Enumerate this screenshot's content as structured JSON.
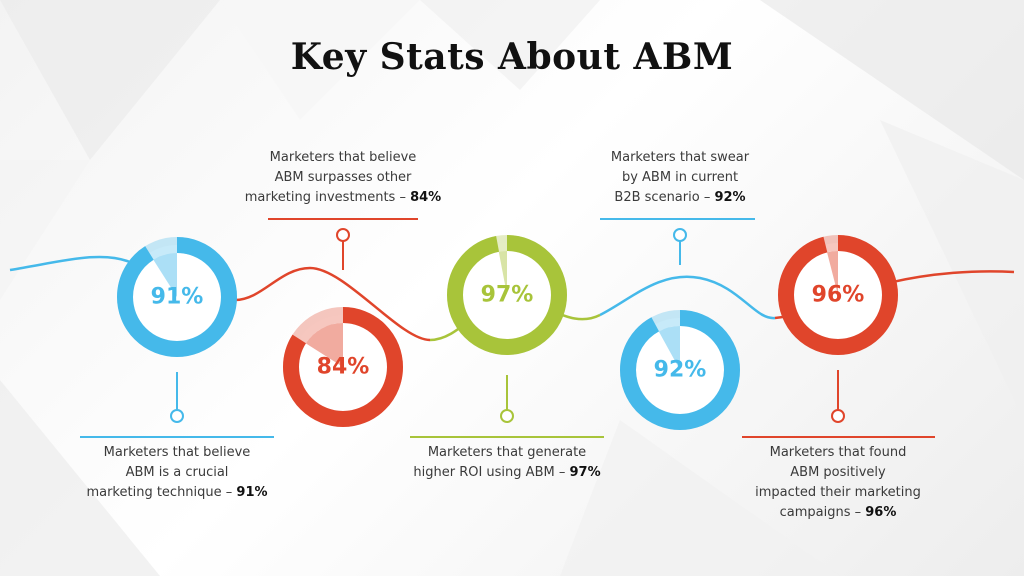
{
  "title": "Key Stats About ABM",
  "colors": {
    "blue": "#45b9ea",
    "red": "#e0452b",
    "green": "#a8c43a"
  },
  "stats": [
    {
      "value": 91,
      "label": "91%",
      "color": "blue",
      "caption_lines": [
        "Marketers that believe",
        "ABM is a crucial"
      ],
      "caption_last": "marketing technique –",
      "caption_pct": "91%"
    },
    {
      "value": 84,
      "label": "84%",
      "color": "red",
      "caption_lines": [
        "Marketers that believe",
        "ABM surpasses other"
      ],
      "caption_last": "marketing investments –",
      "caption_pct": "84%"
    },
    {
      "value": 97,
      "label": "97%",
      "color": "green",
      "caption_lines": [
        "Marketers that generate"
      ],
      "caption_last": "higher ROI using ABM –",
      "caption_pct": "97%"
    },
    {
      "value": 92,
      "label": "92%",
      "color": "blue",
      "caption_lines": [
        "Marketers that swear",
        "by ABM in current"
      ],
      "caption_last": "B2B scenario –",
      "caption_pct": "92%"
    },
    {
      "value": 96,
      "label": "96%",
      "color": "red",
      "caption_lines": [
        "Marketers that found",
        "ABM positively",
        "impacted their marketing"
      ],
      "caption_last": "campaigns –",
      "caption_pct": "96%"
    }
  ]
}
